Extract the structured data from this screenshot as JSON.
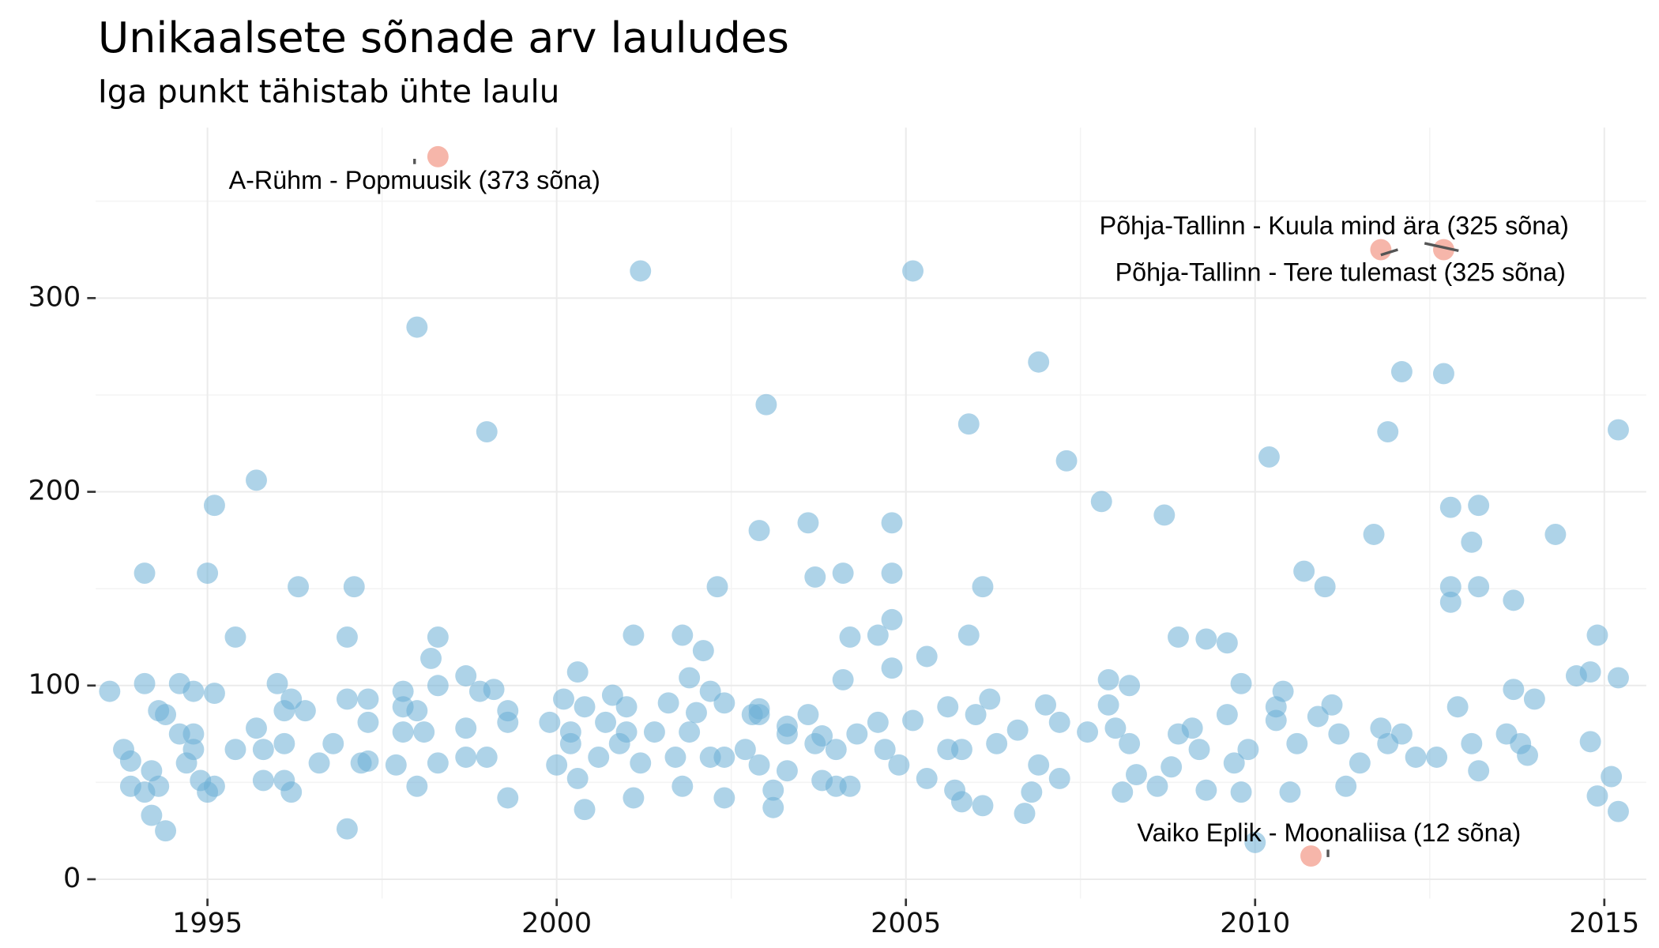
{
  "chart_data": {
    "type": "scatter",
    "title": "Unikaalsete sõnade arv lauludes",
    "subtitle": "Iga punkt tähistab ühte laulu",
    "xlim": [
      1993.4,
      2015.6
    ],
    "ylim": [
      -10,
      388
    ],
    "xticks": [
      1995,
      2000,
      2005,
      2010,
      2015
    ],
    "yticks": [
      0,
      100,
      200,
      300
    ],
    "grid": true,
    "series": [
      {
        "color": "#6baed6",
        "x": [
          1993.6,
          1993.8,
          1993.9,
          1993.9,
          1994.1,
          1994.1,
          1994.1,
          1994.2,
          1994.2,
          1994.3,
          1994.3,
          1994.4,
          1994.4,
          1994.6,
          1994.6,
          1994.7,
          1994.8,
          1994.8,
          1994.8,
          1994.9,
          1995.0,
          1995.0,
          1995.1,
          1995.1,
          1995.1,
          1995.4,
          1995.4,
          1995.7,
          1995.7,
          1995.8,
          1995.8,
          1996.0,
          1996.1,
          1996.1,
          1996.1,
          1996.2,
          1996.3,
          1996.2,
          1996.4,
          1996.6,
          1996.8,
          1997.0,
          1997.0,
          1997.0,
          1997.1,
          1997.2,
          1997.3,
          1997.3,
          1997.3,
          1997.7,
          1997.8,
          1997.8,
          1997.8,
          1998.0,
          1998.0,
          1998.0,
          1998.1,
          1998.2,
          1998.3,
          1998.3,
          1998.3,
          1998.7,
          1998.7,
          1998.7,
          1998.9,
          1999.0,
          1999.0,
          1999.1,
          1999.3,
          1999.3,
          1999.3,
          1999.9,
          2000.1,
          2000.0,
          2000.2,
          2000.2,
          2000.3,
          2000.3,
          2000.4,
          2000.4,
          2000.6,
          2000.7,
          2000.8,
          2000.9,
          2001.0,
          2001.0,
          2001.1,
          2001.1,
          2001.2,
          2001.2,
          2001.4,
          2001.6,
          2001.7,
          2001.8,
          2001.8,
          2001.9,
          2001.9,
          2002.0,
          2002.1,
          2002.2,
          2002.2,
          2002.3,
          2002.4,
          2002.4,
          2002.4,
          2002.7,
          2002.8,
          2002.9,
          2002.9,
          2002.9,
          2003.0,
          2002.9,
          2003.1,
          2003.1,
          2003.3,
          2003.3,
          2003.3,
          2003.6,
          2003.6,
          2003.7,
          2003.7,
          2003.8,
          2003.8,
          2004.0,
          2004.0,
          2004.1,
          2004.1,
          2004.2,
          2004.2,
          2004.3,
          2004.6,
          2004.6,
          2004.7,
          2004.8,
          2004.8,
          2004.8,
          2004.8,
          2004.9,
          2005.1,
          2005.1,
          2005.3,
          2005.3,
          2005.6,
          2005.6,
          2005.7,
          2005.8,
          2005.8,
          2005.9,
          2005.9,
          2006.0,
          2006.1,
          2006.1,
          2006.2,
          2006.3,
          2006.6,
          2006.7,
          2006.8,
          2006.9,
          2006.9,
          2007.0,
          2007.2,
          2007.2,
          2007.3,
          2007.6,
          2007.8,
          2007.9,
          2007.9,
          2008.0,
          2008.1,
          2008.2,
          2008.2,
          2008.3,
          2008.6,
          2008.7,
          2008.9,
          2008.9,
          2008.8,
          2009.1,
          2009.2,
          2009.3,
          2009.3,
          2009.6,
          2009.6,
          2009.7,
          2009.8,
          2009.8,
          2009.9,
          2010.0,
          2010.2,
          2010.3,
          2010.3,
          2010.4,
          2010.5,
          2010.6,
          2010.7,
          2010.9,
          2011.0,
          2011.1,
          2011.2,
          2011.3,
          2011.5,
          2011.7,
          2011.9,
          2011.8,
          2011.9,
          2012.1,
          2012.1,
          2012.3,
          2012.6,
          2012.7,
          2012.8,
          2012.8,
          2012.8,
          2012.9,
          2013.1,
          2013.1,
          2013.2,
          2013.2,
          2013.2,
          2013.6,
          2013.7,
          2013.7,
          2013.8,
          2013.9,
          2014.0,
          2014.3,
          2014.6,
          2014.8,
          2014.8,
          2014.9,
          2014.9,
          2015.2,
          2015.2,
          2015.2,
          2015.1
        ],
        "values": [
          97,
          67,
          61,
          48,
          158,
          101,
          45,
          56,
          33,
          48,
          87,
          25,
          85,
          101,
          75,
          60,
          75,
          97,
          67,
          51,
          158,
          45,
          96,
          193,
          48,
          67,
          125,
          206,
          78,
          51,
          67,
          101,
          87,
          70,
          51,
          45,
          151,
          93,
          87,
          60,
          70,
          125,
          93,
          26,
          151,
          60,
          81,
          93,
          61,
          59,
          97,
          89,
          76,
          285,
          48,
          87,
          76,
          114,
          100,
          125,
          60,
          105,
          78,
          63,
          97,
          231,
          63,
          98,
          87,
          81,
          42,
          81,
          93,
          59,
          70,
          76,
          52,
          107,
          36,
          89,
          63,
          81,
          95,
          70,
          89,
          76,
          42,
          126,
          60,
          314,
          76,
          91,
          63,
          126,
          48,
          76,
          104,
          86,
          118,
          97,
          63,
          151,
          42,
          91,
          63,
          67,
          85,
          180,
          85,
          88,
          245,
          59,
          46,
          37,
          75,
          56,
          79,
          184,
          85,
          70,
          156,
          51,
          74,
          67,
          48,
          103,
          158,
          125,
          48,
          75,
          81,
          126,
          67,
          184,
          109,
          134,
          158,
          59,
          314,
          82,
          115,
          52,
          67,
          89,
          46,
          67,
          40,
          235,
          126,
          85,
          151,
          38,
          93,
          70,
          77,
          34,
          45,
          59,
          267,
          90,
          52,
          81,
          216,
          76,
          195,
          90,
          103,
          78,
          45,
          100,
          70,
          54,
          48,
          188,
          75,
          125,
          58,
          78,
          67,
          124,
          46,
          122,
          85,
          60,
          101,
          45,
          67,
          19,
          218,
          82,
          89,
          97,
          45,
          70,
          159,
          84,
          151,
          90,
          75,
          48,
          60,
          178,
          231,
          78,
          70,
          262,
          75,
          63,
          63,
          261,
          192,
          151,
          143,
          89,
          174,
          70,
          193,
          151,
          56,
          75,
          98,
          144,
          70,
          64,
          93,
          178,
          105,
          71,
          107,
          126,
          43,
          104,
          232,
          35,
          53
        ]
      },
      {
        "color": "#f4a99b",
        "x": [
          1998.3,
          2011.8,
          2012.7,
          2010.8
        ],
        "values": [
          373,
          325,
          325,
          12
        ]
      }
    ],
    "annotations": [
      "A-Rühm  - Popmuusik (373 sõna)",
      "Põhja-Tallinn - Tere tulemast (325 sõna)",
      "Põhja-Tallinn - Kuula mind ära (325 sõna)",
      "Vaiko Eplik - Moonaliisa (12 sõna)"
    ]
  }
}
